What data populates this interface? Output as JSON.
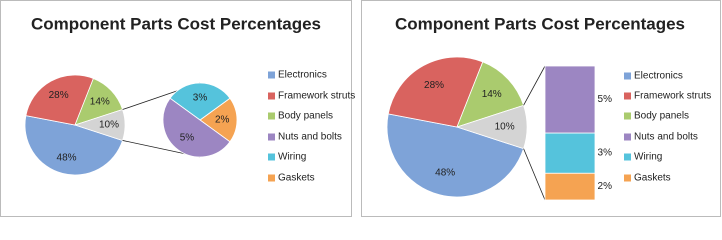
{
  "chart_data": [
    {
      "type": "pie-of-pie",
      "title": "Component Parts Cost Percentages",
      "categories": [
        "Electronics",
        "Framework struts",
        "Body panels",
        "Nuts and bolts",
        "Wiring",
        "Gaskets"
      ],
      "values": [
        48,
        28,
        14,
        5,
        3,
        2
      ],
      "value_labels": [
        "48%",
        "28%",
        "14%",
        "5%",
        "3%",
        "2%"
      ],
      "colors": [
        "#7ea3d8",
        "#d9635f",
        "#aacb6e",
        "#9c86c2",
        "#55c3dc",
        "#f5a352"
      ],
      "other_value": 10,
      "other_label": "10%",
      "other_color": "#d4d4d4",
      "legend": "right"
    },
    {
      "type": "bar-of-pie",
      "title": "Component Parts Cost Percentages",
      "categories": [
        "Electronics",
        "Framework struts",
        "Body panels",
        "Nuts and bolts",
        "Wiring",
        "Gaskets"
      ],
      "values": [
        48,
        28,
        14,
        5,
        3,
        2
      ],
      "value_labels": [
        "48%",
        "28%",
        "14%",
        "5%",
        "3%",
        "2%"
      ],
      "colors": [
        "#7ea3d8",
        "#d9635f",
        "#aacb6e",
        "#9c86c2",
        "#55c3dc",
        "#f5a352"
      ],
      "other_value": 10,
      "other_label": "10%",
      "other_color": "#d4d4d4",
      "legend": "right"
    }
  ]
}
